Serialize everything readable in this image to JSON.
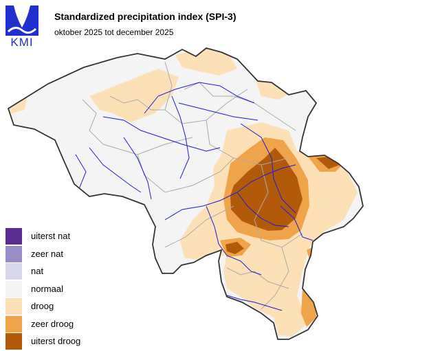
{
  "header": {
    "logo_text": "KMI",
    "title": "Standardized precipitation index (SPI-3)",
    "subtitle": "oktober 2025 tot december 2025"
  },
  "colors": {
    "logo": "#1f2fd0",
    "land_normal": "#f4f4f4",
    "border": "#333333",
    "province_lines": "#aaaaaa",
    "rivers": "#1a1adb"
  },
  "legend": {
    "items": [
      {
        "label": "uiterst nat",
        "color": "#5b2c91"
      },
      {
        "label": "zeer nat",
        "color": "#9a8cc6"
      },
      {
        "label": "nat",
        "color": "#d6d7ea"
      },
      {
        "label": "normaal",
        "color": "#f4f4f4"
      },
      {
        "label": "droog",
        "color": "#fde0b6"
      },
      {
        "label": "zeer droog",
        "color": "#f0a44a"
      },
      {
        "label": "uiterst droog",
        "color": "#b35a0a"
      }
    ]
  }
}
